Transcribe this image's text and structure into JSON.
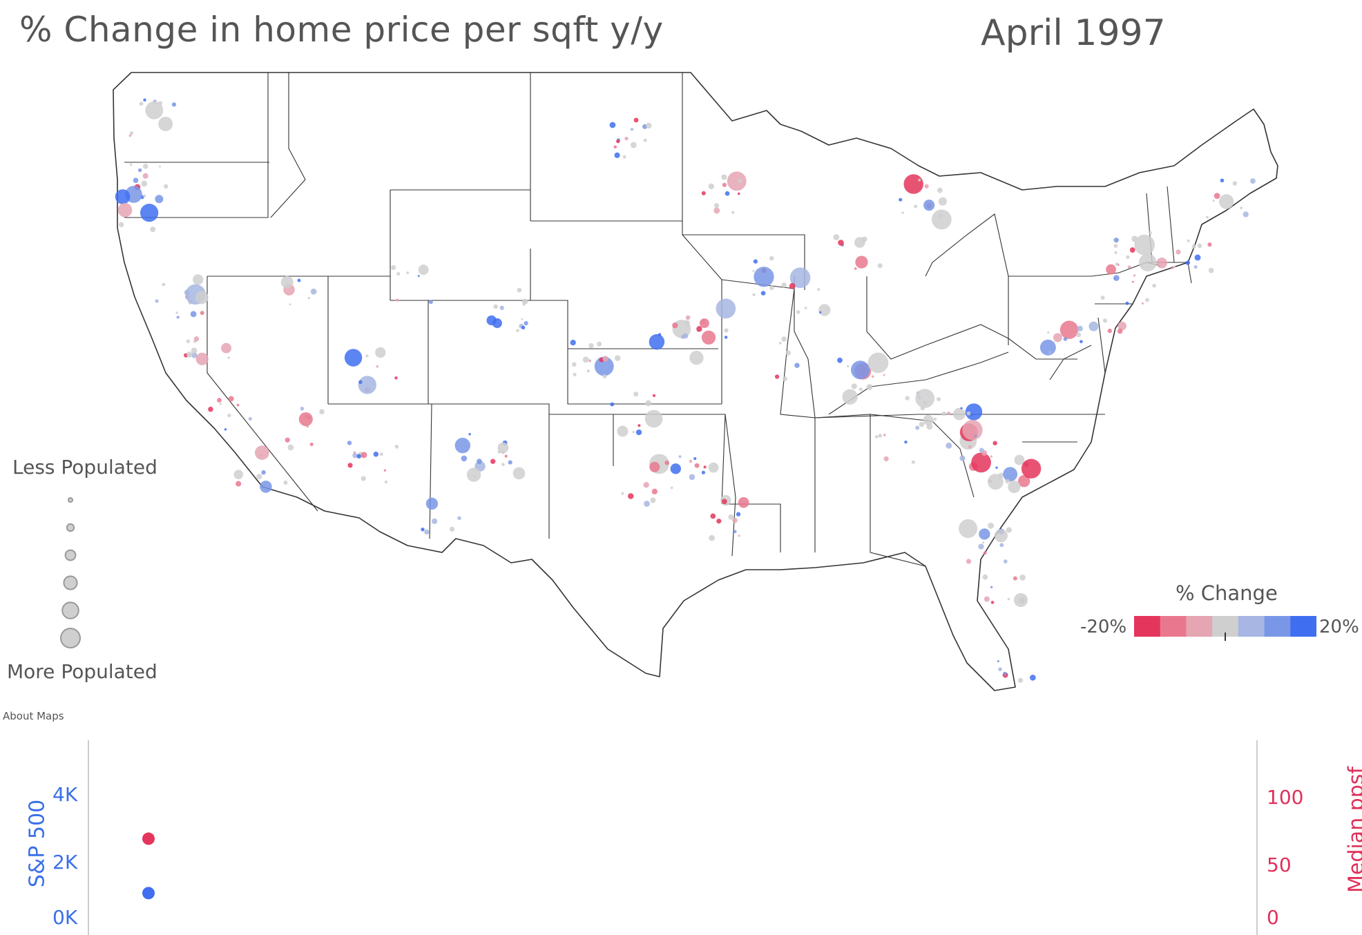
{
  "header": {
    "title": "% Change in home price per sqft y/y",
    "date": "April 1997"
  },
  "size_legend": {
    "top_label": "Less Populated",
    "bottom_label": "More Populated",
    "steps": 6
  },
  "color_legend": {
    "title": "% Change",
    "min_label": "-20%",
    "max_label": "20%",
    "colors": [
      "#e4355c",
      "#e9788e",
      "#e5a5b3",
      "#cfcfcf",
      "#a7b6e2",
      "#7997e6",
      "#3f6ff0"
    ]
  },
  "about_link": "About Maps",
  "lower_chart": {
    "left_axis": {
      "label": "S&P 500",
      "ticks": [
        "4K",
        "2K",
        "0K"
      ]
    },
    "right_axis": {
      "label": "Median ppsf",
      "ticks": [
        "100",
        "50",
        "0"
      ]
    },
    "sp500_point_k": 0.85,
    "ppsf_point": 66
  },
  "colors": {
    "neutral": "#cfcfcf",
    "negative": "#e4355c",
    "positive": "#3f6ff0",
    "border": "#333333"
  }
}
